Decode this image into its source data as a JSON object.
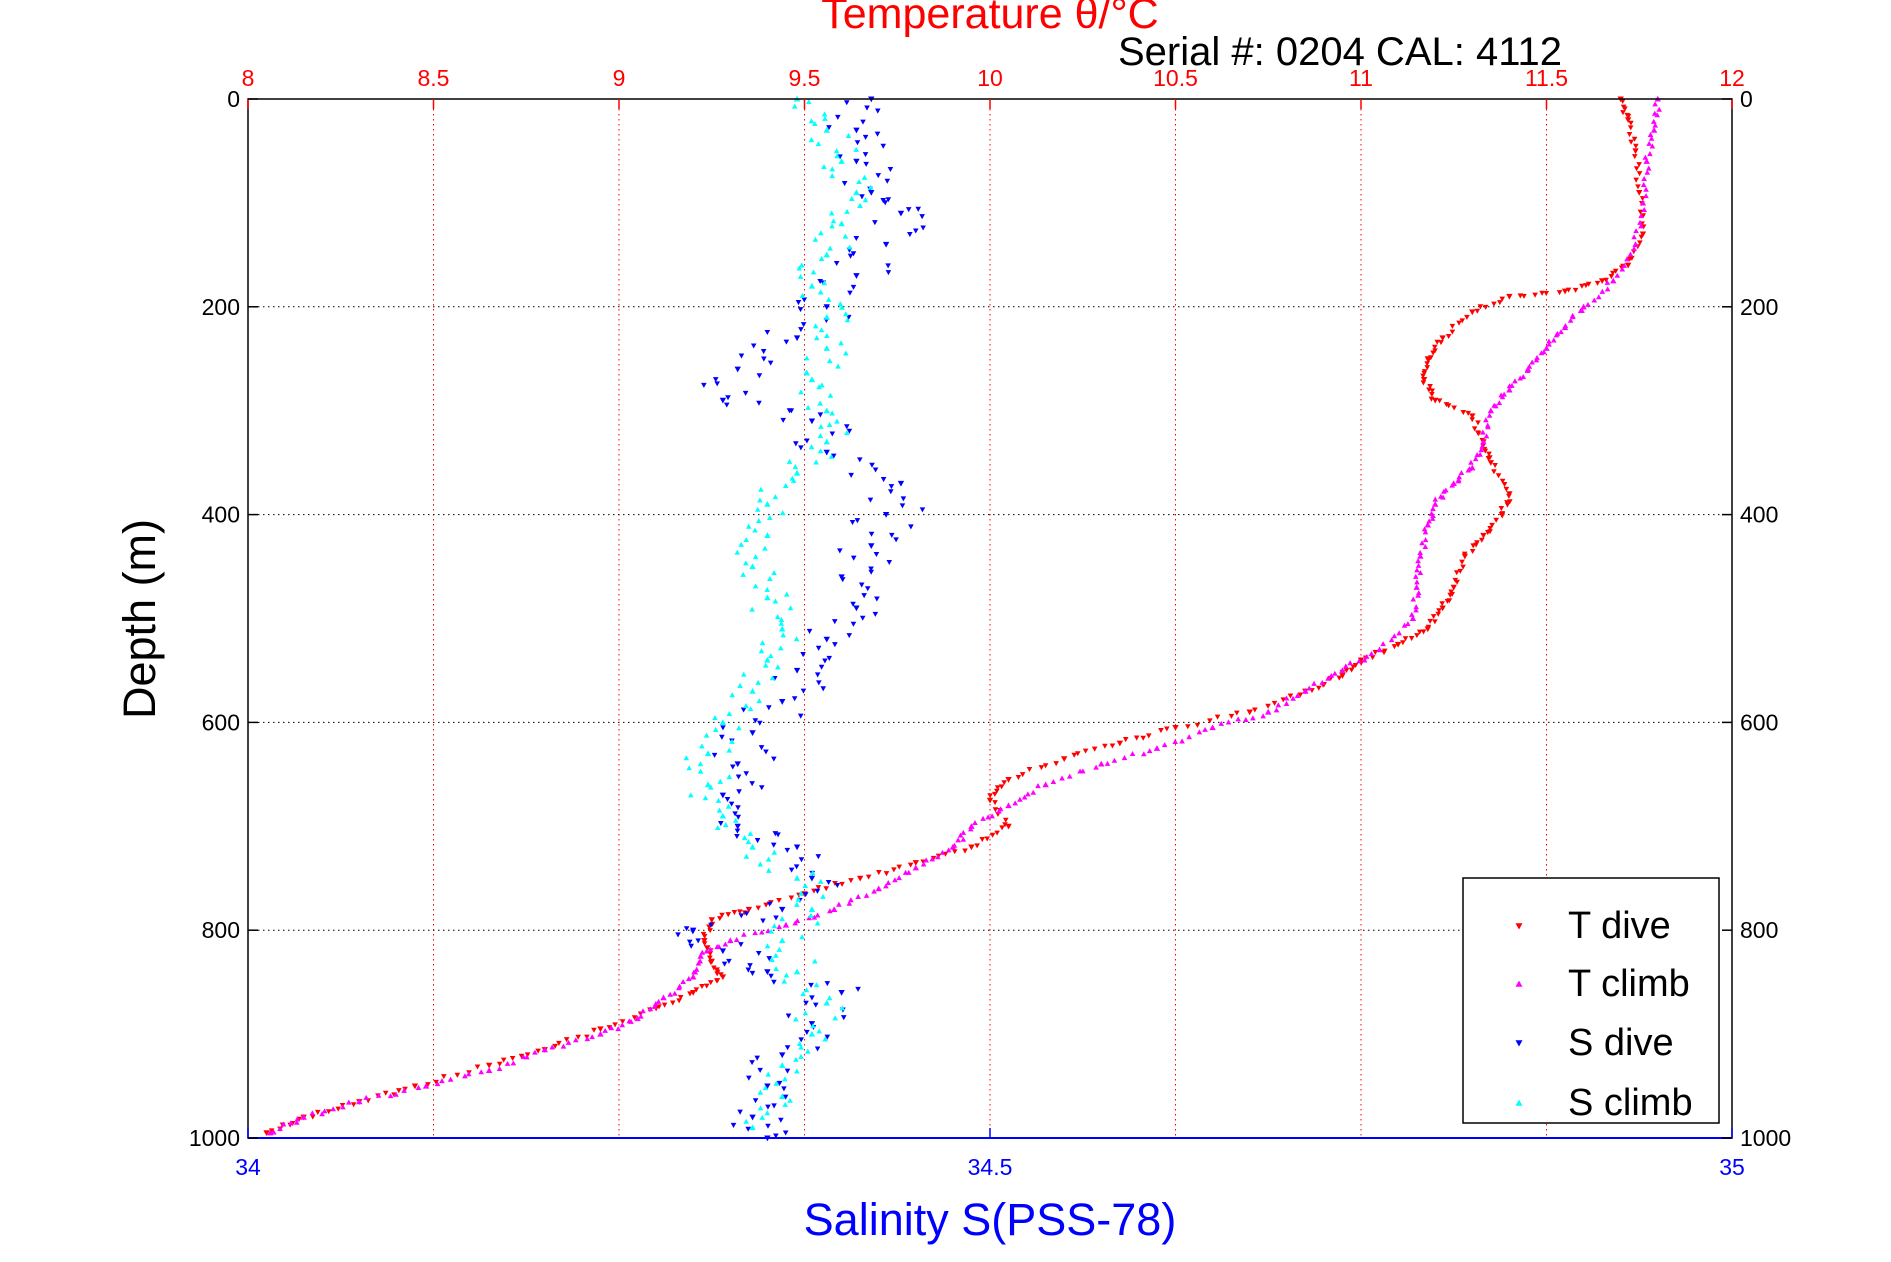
{
  "chart_data": {
    "type": "scatter",
    "title": "Temperature θ/°C",
    "subtitle": "Serial #: 0204  CAL: 4112",
    "xlabel": "Salinity S(PSS-78)",
    "ylabel": "Depth (m)",
    "x_top": {
      "label": "Temperature θ/°C",
      "range": [
        8,
        12
      ],
      "ticks": [
        "8",
        "8.5",
        "9",
        "9.5",
        "10",
        "10.5",
        "11",
        "11.5",
        "12"
      ],
      "color": "#ff0000"
    },
    "x_bottom": {
      "label": "Salinity S(PSS-78)",
      "range": [
        34,
        35
      ],
      "ticks": [
        "34",
        "34.5",
        "35"
      ],
      "color": "#0000ff"
    },
    "y": {
      "range": [
        0,
        1000
      ],
      "inverted": true,
      "ticks": [
        "0",
        "200",
        "400",
        "600",
        "800",
        "1000"
      ]
    },
    "grid": true,
    "legend_position": "bottom-right",
    "series": [
      {
        "name": "T dive",
        "axis": "top",
        "color": "#ff0000",
        "marker": "triangle-down",
        "points": [
          [
            11.7,
            0
          ],
          [
            11.72,
            20
          ],
          [
            11.74,
            50
          ],
          [
            11.75,
            90
          ],
          [
            11.76,
            130
          ],
          [
            11.72,
            160
          ],
          [
            11.65,
            175
          ],
          [
            11.55,
            185
          ],
          [
            11.4,
            190
          ],
          [
            11.3,
            205
          ],
          [
            11.22,
            230
          ],
          [
            11.18,
            250
          ],
          [
            11.17,
            270
          ],
          [
            11.2,
            290
          ],
          [
            11.3,
            305
          ],
          [
            11.33,
            330
          ],
          [
            11.35,
            350
          ],
          [
            11.4,
            380
          ],
          [
            11.38,
            400
          ],
          [
            11.33,
            420
          ],
          [
            11.28,
            440
          ],
          [
            11.25,
            470
          ],
          [
            11.22,
            490
          ],
          [
            11.18,
            510
          ],
          [
            11.1,
            525
          ],
          [
            11.0,
            540
          ],
          [
            10.95,
            555
          ],
          [
            10.85,
            570
          ],
          [
            10.7,
            590
          ],
          [
            10.5,
            605
          ],
          [
            10.35,
            620
          ],
          [
            10.2,
            635
          ],
          [
            10.05,
            655
          ],
          [
            10.0,
            675
          ],
          [
            10.05,
            700
          ],
          [
            9.95,
            720
          ],
          [
            9.8,
            735
          ],
          [
            9.65,
            750
          ],
          [
            9.5,
            765
          ],
          [
            9.35,
            780
          ],
          [
            9.25,
            790
          ],
          [
            9.23,
            810
          ],
          [
            9.25,
            830
          ],
          [
            9.28,
            845
          ],
          [
            9.2,
            860
          ],
          [
            9.1,
            875
          ],
          [
            8.95,
            895
          ],
          [
            8.8,
            915
          ],
          [
            8.65,
            930
          ],
          [
            8.45,
            950
          ],
          [
            8.3,
            965
          ],
          [
            8.15,
            980
          ],
          [
            8.05,
            995
          ]
        ]
      },
      {
        "name": "T climb",
        "axis": "top",
        "color": "#ff00ff",
        "marker": "triangle-up",
        "points": [
          [
            11.8,
            0
          ],
          [
            11.79,
            30
          ],
          [
            11.77,
            60
          ],
          [
            11.76,
            100
          ],
          [
            11.74,
            140
          ],
          [
            11.68,
            175
          ],
          [
            11.6,
            200
          ],
          [
            11.55,
            220
          ],
          [
            11.5,
            240
          ],
          [
            11.45,
            260
          ],
          [
            11.4,
            280
          ],
          [
            11.35,
            300
          ],
          [
            11.33,
            330
          ],
          [
            11.3,
            355
          ],
          [
            11.25,
            370
          ],
          [
            11.2,
            390
          ],
          [
            11.18,
            410
          ],
          [
            11.16,
            440
          ],
          [
            11.15,
            470
          ],
          [
            11.14,
            500
          ],
          [
            11.05,
            530
          ],
          [
            10.95,
            550
          ],
          [
            10.85,
            570
          ],
          [
            10.75,
            590
          ],
          [
            10.6,
            605
          ],
          [
            10.45,
            625
          ],
          [
            10.3,
            640
          ],
          [
            10.15,
            660
          ],
          [
            10.05,
            680
          ],
          [
            9.95,
            700
          ],
          [
            9.9,
            720
          ],
          [
            9.8,
            740
          ],
          [
            9.7,
            760
          ],
          [
            9.58,
            780
          ],
          [
            9.45,
            795
          ],
          [
            9.3,
            810
          ],
          [
            9.22,
            825
          ],
          [
            9.2,
            845
          ],
          [
            9.12,
            865
          ],
          [
            9.05,
            885
          ],
          [
            8.95,
            900
          ],
          [
            8.8,
            915
          ],
          [
            8.65,
            935
          ],
          [
            8.48,
            950
          ],
          [
            8.3,
            965
          ],
          [
            8.15,
            980
          ],
          [
            8.06,
            995
          ]
        ]
      },
      {
        "name": "S dive",
        "axis": "bottom",
        "color": "#0000ff",
        "marker": "triangle-down",
        "points": [
          [
            34.42,
            0
          ],
          [
            34.41,
            30
          ],
          [
            34.41,
            60
          ],
          [
            34.42,
            90
          ],
          [
            34.44,
            110
          ],
          [
            34.43,
            140
          ],
          [
            34.41,
            170
          ],
          [
            34.39,
            200
          ],
          [
            34.37,
            230
          ],
          [
            34.33,
            260
          ],
          [
            34.32,
            290
          ],
          [
            34.38,
            310
          ],
          [
            34.39,
            340
          ],
          [
            34.44,
            370
          ],
          [
            34.43,
            400
          ],
          [
            34.42,
            430
          ],
          [
            34.4,
            460
          ],
          [
            34.41,
            490
          ],
          [
            34.39,
            520
          ],
          [
            34.37,
            550
          ],
          [
            34.36,
            580
          ],
          [
            34.34,
            610
          ],
          [
            34.33,
            640
          ],
          [
            34.32,
            670
          ],
          [
            34.33,
            700
          ],
          [
            34.37,
            720
          ],
          [
            34.38,
            750
          ],
          [
            34.36,
            780
          ],
          [
            34.3,
            800
          ],
          [
            34.32,
            820
          ],
          [
            34.35,
            840
          ],
          [
            34.4,
            860
          ],
          [
            34.38,
            890
          ],
          [
            34.36,
            920
          ],
          [
            34.35,
            950
          ],
          [
            34.34,
            980
          ],
          [
            34.35,
            1000
          ]
        ]
      },
      {
        "name": "S climb",
        "axis": "bottom",
        "color": "#00ffff",
        "marker": "triangle-up",
        "points": [
          [
            34.37,
            0
          ],
          [
            34.39,
            30
          ],
          [
            34.4,
            60
          ],
          [
            34.41,
            90
          ],
          [
            34.4,
            120
          ],
          [
            34.39,
            150
          ],
          [
            34.38,
            180
          ],
          [
            34.39,
            210
          ],
          [
            34.39,
            240
          ],
          [
            34.38,
            270
          ],
          [
            34.39,
            300
          ],
          [
            34.39,
            330
          ],
          [
            34.37,
            360
          ],
          [
            34.35,
            390
          ],
          [
            34.35,
            420
          ],
          [
            34.34,
            450
          ],
          [
            34.35,
            480
          ],
          [
            34.36,
            510
          ],
          [
            34.35,
            540
          ],
          [
            34.34,
            570
          ],
          [
            34.32,
            600
          ],
          [
            34.31,
            630
          ],
          [
            34.31,
            660
          ],
          [
            34.32,
            690
          ],
          [
            34.34,
            720
          ],
          [
            34.37,
            750
          ],
          [
            34.38,
            780
          ],
          [
            34.36,
            810
          ],
          [
            34.37,
            840
          ],
          [
            34.39,
            870
          ],
          [
            34.38,
            900
          ],
          [
            34.36,
            930
          ],
          [
            34.36,
            960
          ],
          [
            34.34,
            990
          ]
        ]
      }
    ]
  }
}
